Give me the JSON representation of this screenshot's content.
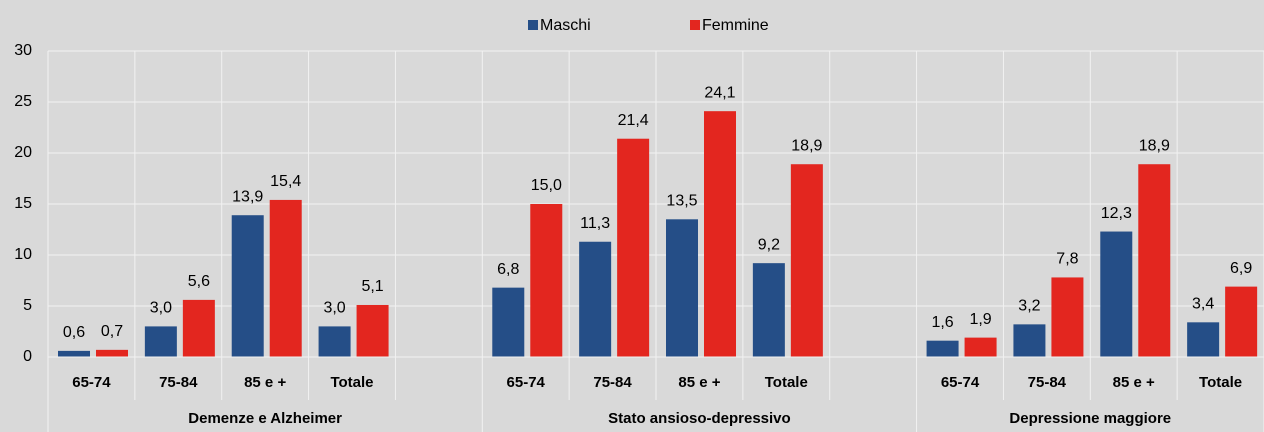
{
  "chart_data": {
    "type": "bar",
    "categories": [
      "65-74",
      "75-84",
      "85 e +",
      "Totale",
      null,
      "65-74",
      "75-84",
      "85 e +",
      "Totale",
      null,
      "65-74",
      "75-84",
      "85 e +",
      "Totale"
    ],
    "groups": [
      "Demenze e Alzheimer",
      "Stato ansioso-depressivo",
      "Depressione maggiore"
    ],
    "series": [
      {
        "name": "Maschi",
        "color": "#254e87",
        "values": [
          0.6,
          3.0,
          13.9,
          3.0,
          null,
          6.8,
          11.3,
          13.5,
          9.2,
          null,
          1.6,
          3.2,
          12.3,
          3.4
        ],
        "value_labels": [
          "0,6",
          "3,0",
          "13,9",
          "3,0",
          null,
          "6,8",
          "11,3",
          "13,5",
          "9,2",
          null,
          "1,6",
          "3,2",
          "12,3",
          "3,4"
        ]
      },
      {
        "name": "Femmine",
        "color": "#e3261f",
        "values": [
          0.7,
          5.6,
          15.4,
          5.1,
          null,
          15.0,
          21.4,
          24.1,
          18.9,
          null,
          1.9,
          7.8,
          18.9,
          6.9
        ],
        "value_labels": [
          "0,7",
          "5,6",
          "15,4",
          "5,1",
          null,
          "15,0",
          "21,4",
          "24,1",
          "18,9",
          null,
          "1,9",
          "7,8",
          "18,9",
          "6,9"
        ]
      }
    ],
    "ylim": [
      0,
      30
    ],
    "yticks": [
      0,
      5,
      10,
      15,
      20,
      25,
      30
    ],
    "grid": true,
    "legend": "top"
  }
}
